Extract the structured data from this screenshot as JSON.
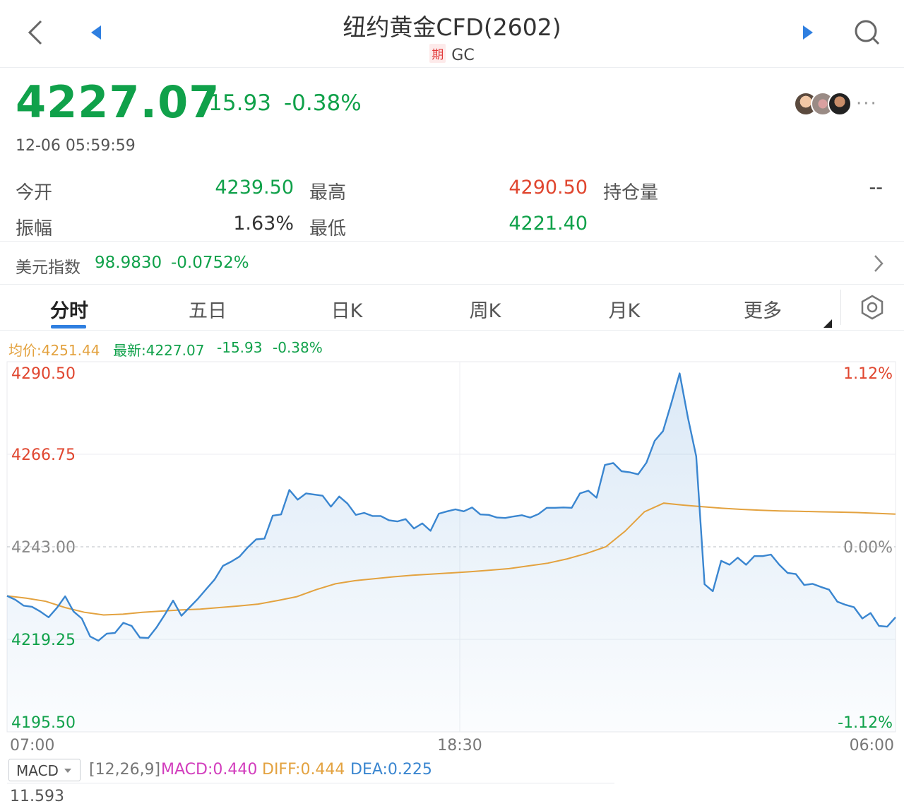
{
  "header": {
    "title": "纽约黄金CFD(2602)",
    "tag": "期",
    "symbol": "GC",
    "icons": [
      "back-chevron-icon",
      "prev-triangle-icon",
      "next-triangle-icon",
      "search-icon"
    ]
  },
  "quote": {
    "price": "4227.07",
    "change": "-15.93",
    "change_pct": "-0.38%",
    "timestamp": "12-06 05:59:59",
    "more": "···"
  },
  "stats": {
    "open_label": "今开",
    "open_value": "4239.50",
    "high_label": "最高",
    "high_value": "4290.50",
    "oi_label": "持仓量",
    "oi_value": "--",
    "amp_label": "振幅",
    "amp_value": "1.63%",
    "low_label": "最低",
    "low_value": "4221.40"
  },
  "usd_index": {
    "label": "美元指数",
    "value": "98.9830",
    "change_pct": "-0.0752%"
  },
  "tabs": [
    {
      "label": "分时",
      "active": true
    },
    {
      "label": "五日"
    },
    {
      "label": "日K"
    },
    {
      "label": "周K"
    },
    {
      "label": "月K"
    },
    {
      "label": "更多"
    }
  ],
  "chart_info": {
    "avg": "均价:4251.44",
    "latest": "最新:4227.07",
    "change": "-15.93",
    "change_pct": "-0.38%"
  },
  "chart_data": {
    "type": "line",
    "y_ticks": [
      "4290.50",
      "4266.75",
      "4243.00",
      "4219.25",
      "4195.50"
    ],
    "pct_ticks": [
      "1.12%",
      "0.00%",
      "-1.12%"
    ],
    "x_ticks": [
      "07:00",
      "18:30",
      "06:00"
    ],
    "ylim": [
      4195.5,
      4290.5
    ],
    "prev_close": 4243.0,
    "series": [
      {
        "role": "price",
        "values": [
          4230.4,
          4229.4,
          4227.9,
          4227.6,
          4226.4,
          4224.9,
          4227.3,
          4230.3,
          4226.4,
          4224.6,
          4220.0,
          4218.9,
          4220.7,
          4220.9,
          4223.5,
          4222.7,
          4219.7,
          4219.6,
          4222.3,
          4225.6,
          4229.2,
          4225.3,
          4227.5,
          4229.7,
          4232.2,
          4234.6,
          4238.1,
          4239.2,
          4240.5,
          4242.9,
          4244.9,
          4245.1,
          4251.0,
          4251.3,
          4257.6,
          4255.1,
          4256.7,
          4256.4,
          4256.1,
          4253.3,
          4255.9,
          4254.1,
          4251.2,
          4251.7,
          4250.9,
          4250.9,
          4249.8,
          4249.5,
          4250.1,
          4247.7,
          4249.0,
          4247.1,
          4251.5,
          4252.1,
          4252.6,
          4252.1,
          4253.1,
          4251.3,
          4251.2,
          4250.5,
          4250.4,
          4250.8,
          4251.1,
          4250.5,
          4251.4,
          4253.0,
          4253.0,
          4253.1,
          4253.0,
          4256.7,
          4257.4,
          4255.6,
          4264.0,
          4264.5,
          4262.4,
          4262.1,
          4261.6,
          4264.6,
          4270.2,
          4272.7,
          4279.9,
          4287.5,
          4276.1,
          4266.2,
          4233.4,
          4231.6,
          4239.4,
          4238.4,
          4240.2,
          4238.4,
          4240.6,
          4240.6,
          4241.0,
          4238.4,
          4236.3,
          4236.0,
          4233.2,
          4233.5,
          4232.7,
          4232.0,
          4228.9,
          4228.1,
          4227.5,
          4224.6,
          4226.0,
          4222.7,
          4222.5,
          4224.9
        ]
      },
      {
        "role": "average",
        "values": [
          4230.4,
          4229.8,
          4229.0,
          4227.4,
          4226.2,
          4225.5,
          4225.7,
          4226.2,
          4226.5,
          4226.8,
          4227.0,
          4227.4,
          4227.8,
          4228.3,
          4229.2,
          4230.2,
          4232.0,
          4233.5,
          4234.3,
          4234.8,
          4235.3,
          4235.7,
          4236.0,
          4236.3,
          4236.6,
          4237.0,
          4237.4,
          4238.1,
          4238.8,
          4239.9,
          4241.3,
          4243.0,
          4247.0,
          4252.0,
          4254.2,
          4253.7,
          4253.3,
          4252.9,
          4252.6,
          4252.4,
          4252.2,
          4252.1,
          4252.0,
          4251.9,
          4251.8,
          4251.6,
          4251.4
        ]
      }
    ]
  },
  "macd": {
    "selector": "MACD",
    "params": "[12,26,9]",
    "macd": "MACD:0.440",
    "diff": "DIFF:0.444",
    "dea": "DEA:0.225",
    "scale_top": "11.593"
  },
  "colors": {
    "up": "#e0462f",
    "down": "#10a14a",
    "price_line": "#3a86d0",
    "avg_line": "#e3a23f",
    "macd": "#d23dbd",
    "diff": "#e3a23f",
    "dea": "#3a86d0"
  }
}
